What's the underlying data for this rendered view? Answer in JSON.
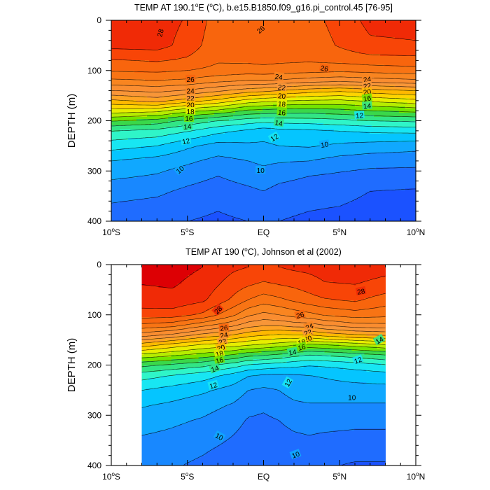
{
  "figure": {
    "background": "#ffffff",
    "line_color": "#000000"
  },
  "colormap": {
    "levels": [
      4,
      5,
      6,
      7,
      8,
      9,
      10,
      11,
      12,
      13,
      14,
      15,
      16,
      17,
      18,
      19,
      20,
      21,
      22,
      23,
      24,
      25,
      26,
      27,
      28,
      29
    ],
    "colors": [
      "#4a00d6",
      "#4000e0",
      "#2a12f2",
      "#1430ff",
      "#1b52ff",
      "#1f6cff",
      "#1888ff",
      "#10a8ff",
      "#05c5ff",
      "#18e6f2",
      "#2ff5c8",
      "#32e585",
      "#3ad84a",
      "#74e400",
      "#b6ec00",
      "#e7ee00",
      "#ffd400",
      "#ffb800",
      "#ffa224",
      "#f89638",
      "#fa8d30",
      "#f98520",
      "#f87414",
      "#f8650d",
      "#f84507",
      "#f02a06",
      "#dd0004"
    ]
  },
  "chart_data": [
    {
      "type": "contour",
      "title": "TEMP AT 190.1°E (°C), b.e15.B1850.f09_g16.pi_control.45 [76-95]",
      "title_parts": {
        "prefix": "TEMP AT 190.1",
        "deg1": "o",
        "mid": "E (",
        "deg2": "o",
        "suffix": "C), b.e15.B1850.f09_g16.pi_control.45 [76-95]"
      },
      "xlabel": "",
      "ylabel": "DEPTH (m)",
      "xlim": [
        -10,
        10
      ],
      "ylim": [
        400,
        0
      ],
      "xticks": [
        -10,
        -5,
        0,
        5,
        10
      ],
      "xtick_labels": [
        {
          "main": "10",
          "deg": "o",
          "hemi": "S"
        },
        {
          "main": "5",
          "deg": "o",
          "hemi": "S"
        },
        {
          "main": "EQ",
          "deg": "",
          "hemi": ""
        },
        {
          "main": "5",
          "deg": "o",
          "hemi": "N"
        },
        {
          "main": "10",
          "deg": "o",
          "hemi": "N"
        }
      ],
      "yticks": [
        0,
        100,
        200,
        300,
        400
      ],
      "data_xlim": [
        -10,
        10
      ],
      "grid": false,
      "contour_interval": 1,
      "units": "°C",
      "depth": [
        0,
        50,
        80,
        100,
        120,
        140,
        160,
        180,
        200,
        220,
        250,
        280,
        310,
        340,
        370,
        400
      ],
      "lon_samples": [
        -10,
        -7,
        -5,
        -3,
        -1,
        0,
        1,
        3,
        5,
        7,
        10
      ],
      "temperature": [
        [
          28.6,
          28.5,
          27.9,
          26.5,
          26.6,
          26.8,
          26.7,
          26.6,
          27.4,
          28.3,
          28.4
        ],
        [
          28.3,
          28.4,
          27.6,
          26.3,
          26.4,
          26.5,
          26.4,
          26.4,
          27.1,
          27.8,
          27.9
        ],
        [
          26.9,
          27.1,
          26.8,
          26.1,
          26.2,
          26.3,
          26.2,
          26.1,
          26.3,
          26.5,
          26.6
        ],
        [
          26.1,
          26.2,
          26.0,
          25.7,
          25.5,
          25.6,
          25.5,
          25.4,
          25.2,
          25.4,
          25.6
        ],
        [
          24.8,
          25.0,
          24.8,
          24.3,
          24.0,
          24.0,
          23.9,
          23.5,
          23.3,
          23.5,
          23.8
        ],
        [
          23.0,
          23.3,
          22.9,
          22.2,
          21.5,
          21.3,
          21.0,
          20.5,
          20.2,
          20.6,
          21.0
        ],
        [
          20.8,
          21.4,
          20.5,
          19.7,
          18.6,
          18.3,
          18.1,
          17.9,
          17.8,
          18.2,
          18.7
        ],
        [
          18.6,
          18.3,
          17.3,
          16.8,
          15.8,
          15.7,
          15.6,
          15.5,
          15.7,
          16.0,
          16.3
        ],
        [
          16.1,
          15.6,
          14.7,
          14.0,
          13.5,
          13.3,
          13.4,
          13.5,
          13.7,
          14.0,
          14.2
        ],
        [
          14.0,
          13.7,
          13.1,
          12.3,
          11.8,
          11.5,
          11.7,
          11.8,
          12.0,
          12.2,
          12.3
        ],
        [
          12.4,
          12.0,
          11.2,
          10.6,
          10.8,
          10.8,
          11.0,
          11.1,
          10.8,
          10.6,
          10.4
        ],
        [
          11.0,
          10.6,
          10.2,
          9.7,
          10.0,
          10.2,
          10.1,
          10.0,
          9.6,
          9.4,
          9.3
        ],
        [
          10.2,
          9.9,
          9.4,
          9.0,
          9.4,
          9.6,
          9.3,
          9.0,
          8.8,
          8.6,
          8.6
        ],
        [
          9.4,
          9.2,
          8.8,
          8.5,
          8.8,
          9.0,
          8.7,
          8.5,
          8.4,
          8.0,
          7.9
        ],
        [
          8.9,
          8.7,
          8.4,
          8.1,
          8.4,
          8.6,
          8.3,
          8.1,
          8.0,
          7.7,
          7.6
        ],
        [
          8.6,
          8.4,
          8.0,
          7.8,
          8.0,
          8.2,
          8.0,
          7.8,
          7.7,
          7.3,
          7.2
        ]
      ],
      "contour_labels": [
        {
          "x": -6.8,
          "y": 25,
          "text": "28",
          "angle": -75
        },
        {
          "x": -0.2,
          "y": 18,
          "text": "26",
          "angle": -40
        },
        {
          "x": 4.0,
          "y": 95,
          "text": "26",
          "angle": 10
        },
        {
          "x": -4.8,
          "y": 117,
          "text": "26",
          "angle": 0
        },
        {
          "x": 1.0,
          "y": 112,
          "text": "24",
          "angle": 10
        },
        {
          "x": 6.8,
          "y": 117,
          "text": "24",
          "angle": -8
        },
        {
          "x": -4.8,
          "y": 140,
          "text": "24",
          "angle": 0
        },
        {
          "x": 1.2,
          "y": 133,
          "text": "22",
          "angle": 8
        },
        {
          "x": 6.8,
          "y": 130,
          "text": "22",
          "angle": -8
        },
        {
          "x": -4.8,
          "y": 155,
          "text": "22",
          "angle": 0
        },
        {
          "x": 1.2,
          "y": 150,
          "text": "20",
          "angle": 5
        },
        {
          "x": 6.8,
          "y": 142,
          "text": "20",
          "angle": -8
        },
        {
          "x": -4.8,
          "y": 168,
          "text": "20",
          "angle": 0
        },
        {
          "x": 1.2,
          "y": 166,
          "text": "18",
          "angle": 5
        },
        {
          "x": 6.8,
          "y": 155,
          "text": "16",
          "angle": -8
        },
        {
          "x": -4.8,
          "y": 181,
          "text": "18",
          "angle": 0
        },
        {
          "x": 1.2,
          "y": 183,
          "text": "16",
          "angle": 5
        },
        {
          "x": 6.8,
          "y": 170,
          "text": "14",
          "angle": -5
        },
        {
          "x": -4.9,
          "y": 195,
          "text": "16",
          "angle": 0
        },
        {
          "x": 1.0,
          "y": 204,
          "text": "14",
          "angle": 10
        },
        {
          "x": 6.3,
          "y": 189,
          "text": "12",
          "angle": -5
        },
        {
          "x": -5.0,
          "y": 211,
          "text": "14",
          "angle": -5
        },
        {
          "x": 0.7,
          "y": 233,
          "text": "12",
          "angle": -30
        },
        {
          "x": 4.0,
          "y": 247,
          "text": "10",
          "angle": -10
        },
        {
          "x": -5.1,
          "y": 240,
          "text": "12",
          "angle": -10
        },
        {
          "x": -0.2,
          "y": 298,
          "text": "10",
          "angle": 0
        },
        {
          "x": -5.5,
          "y": 297,
          "text": "10",
          "angle": -40
        }
      ]
    },
    {
      "type": "contour",
      "title": "TEMP AT 190 (°C), Johnson et al (2002)",
      "title_parts": {
        "prefix": "TEMP AT 190 (",
        "deg1": "o",
        "mid": "",
        "deg2": "",
        "suffix": "C), Johnson et al (2002)"
      },
      "xlabel": "",
      "ylabel": "DEPTH (m)",
      "xlim": [
        -10,
        10
      ],
      "ylim": [
        400,
        0
      ],
      "xticks": [
        -10,
        -5,
        0,
        5,
        10
      ],
      "xtick_labels": [
        {
          "main": "10",
          "deg": "o",
          "hemi": "S"
        },
        {
          "main": "5",
          "deg": "o",
          "hemi": "S"
        },
        {
          "main": "EQ",
          "deg": "",
          "hemi": ""
        },
        {
          "main": "5",
          "deg": "o",
          "hemi": "N"
        },
        {
          "main": "10",
          "deg": "o",
          "hemi": "N"
        }
      ],
      "yticks": [
        0,
        100,
        200,
        300,
        400
      ],
      "data_xlim": [
        -8,
        8
      ],
      "grid": false,
      "contour_interval": 1,
      "units": "°C",
      "depth": [
        5,
        40,
        70,
        100,
        120,
        140,
        160,
        180,
        200,
        220,
        250,
        280,
        310,
        340,
        370,
        400
      ],
      "lon_samples": [
        -8,
        -6,
        -4,
        -2,
        -1,
        0,
        1,
        2,
        3,
        4,
        6,
        8
      ],
      "temperature": [
        [
          29.4,
          29.4,
          29.0,
          28.2,
          28.0,
          27.9,
          28.0,
          28.2,
          28.3,
          28.5,
          28.5,
          28.3
        ],
        [
          29.0,
          29.1,
          28.6,
          27.5,
          27.1,
          26.8,
          27.0,
          27.2,
          27.5,
          27.9,
          28.0,
          27.7
        ],
        [
          28.5,
          28.7,
          28.2,
          26.8,
          26.0,
          25.5,
          25.8,
          26.2,
          26.6,
          26.9,
          27.2,
          26.5
        ],
        [
          27.6,
          27.5,
          26.8,
          25.2,
          24.2,
          23.7,
          24.0,
          24.4,
          24.7,
          25.1,
          25.5,
          25.3
        ],
        [
          25.8,
          25.5,
          24.4,
          23.3,
          22.5,
          22.2,
          22.2,
          22.5,
          22.6,
          23.1,
          23.7,
          23.8
        ],
        [
          23.5,
          22.8,
          21.7,
          21.0,
          20.4,
          20.1,
          19.9,
          20.0,
          20.0,
          20.4,
          20.9,
          21.2
        ],
        [
          20.5,
          19.6,
          18.8,
          18.4,
          18.1,
          17.8,
          17.5,
          17.1,
          16.7,
          16.9,
          17.4,
          17.9
        ],
        [
          17.7,
          17.2,
          16.6,
          15.9,
          15.3,
          15.1,
          14.8,
          14.3,
          14.0,
          14.1,
          14.5,
          15.0
        ],
        [
          15.3,
          14.8,
          14.3,
          13.5,
          12.9,
          12.7,
          12.5,
          12.3,
          12.1,
          12.2,
          12.5,
          12.9
        ],
        [
          13.5,
          13.0,
          12.5,
          11.7,
          11.1,
          10.9,
          10.8,
          10.9,
          11.0,
          11.1,
          11.4,
          11.6
        ],
        [
          12.0,
          11.6,
          11.2,
          10.6,
          10.0,
          9.8,
          10.0,
          10.4,
          10.6,
          10.6,
          10.6,
          10.6
        ],
        [
          11.1,
          10.8,
          10.4,
          9.9,
          9.4,
          9.2,
          9.5,
          9.8,
          9.9,
          9.9,
          9.9,
          9.9
        ],
        [
          10.5,
          10.2,
          9.9,
          9.4,
          8.9,
          8.8,
          9.0,
          9.3,
          9.4,
          9.4,
          9.3,
          9.3
        ],
        [
          10.0,
          9.8,
          9.5,
          9.0,
          8.6,
          8.5,
          8.7,
          8.9,
          9.0,
          8.9,
          8.8,
          8.8
        ],
        [
          9.6,
          9.4,
          9.1,
          8.7,
          8.3,
          8.2,
          8.4,
          8.6,
          8.6,
          8.4,
          8.3,
          8.3
        ],
        [
          9.3,
          9.1,
          8.8,
          8.5,
          8.1,
          8.0,
          8.2,
          8.3,
          8.3,
          8.1,
          7.9,
          7.9
        ]
      ],
      "contour_labels": [
        {
          "x": -3.0,
          "y": 90,
          "text": "28",
          "angle": -45
        },
        {
          "x": 6.4,
          "y": 53,
          "text": "28",
          "angle": -10
        },
        {
          "x": 2.4,
          "y": 100,
          "text": "26",
          "angle": -15
        },
        {
          "x": -2.6,
          "y": 126,
          "text": "26",
          "angle": -5
        },
        {
          "x": 3.0,
          "y": 123,
          "text": "24",
          "angle": -20
        },
        {
          "x": -2.6,
          "y": 140,
          "text": "24",
          "angle": -10
        },
        {
          "x": 2.9,
          "y": 135,
          "text": "22",
          "angle": -20
        },
        {
          "x": -2.7,
          "y": 153,
          "text": "22",
          "angle": -15
        },
        {
          "x": 2.9,
          "y": 147,
          "text": "20",
          "angle": -20
        },
        {
          "x": -2.8,
          "y": 165,
          "text": "20",
          "angle": -15
        },
        {
          "x": 2.5,
          "y": 154,
          "text": "18",
          "angle": -15
        },
        {
          "x": -2.9,
          "y": 177,
          "text": "18",
          "angle": -15
        },
        {
          "x": 2.5,
          "y": 164,
          "text": "16",
          "angle": -15
        },
        {
          "x": -2.9,
          "y": 190,
          "text": "16",
          "angle": -15
        },
        {
          "x": 1.9,
          "y": 174,
          "text": "14",
          "angle": -10
        },
        {
          "x": 7.6,
          "y": 150,
          "text": "14",
          "angle": -30
        },
        {
          "x": -3.2,
          "y": 207,
          "text": "14",
          "angle": -20
        },
        {
          "x": 6.2,
          "y": 190,
          "text": "12",
          "angle": -20
        },
        {
          "x": -3.3,
          "y": 240,
          "text": "12",
          "angle": -15
        },
        {
          "x": 1.6,
          "y": 235,
          "text": "12",
          "angle": -60
        },
        {
          "x": 5.8,
          "y": 264,
          "text": "10",
          "angle": 0
        },
        {
          "x": -2.9,
          "y": 342,
          "text": "10",
          "angle": 30
        },
        {
          "x": 2.1,
          "y": 378,
          "text": "10",
          "angle": -20
        }
      ]
    }
  ]
}
